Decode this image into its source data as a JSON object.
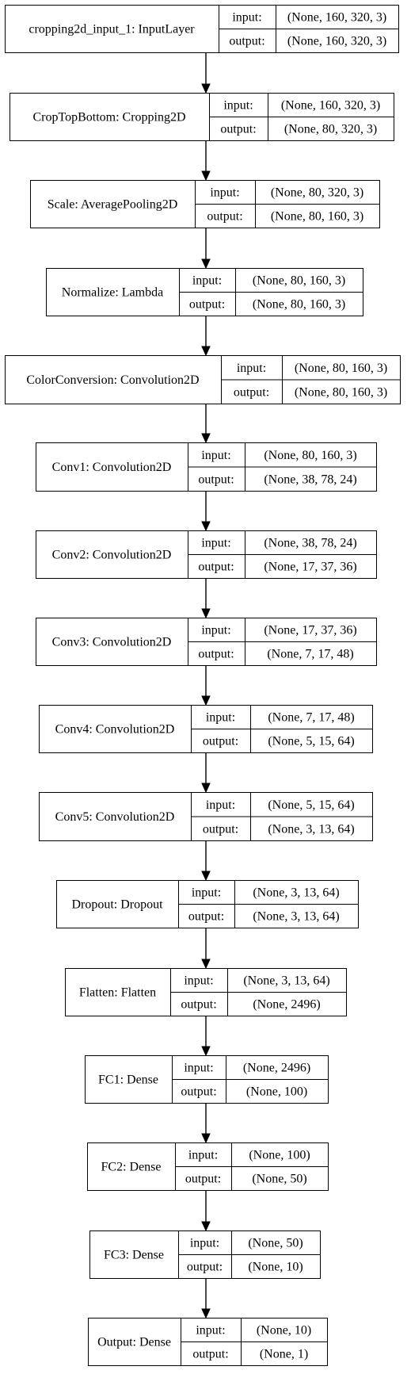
{
  "layers": [
    {
      "name": "cropping2d_input_1: InputLayer",
      "input": "(None, 160, 320, 3)",
      "output": "(None, 160, 320, 3)"
    },
    {
      "name": "CropTopBottom: Cropping2D",
      "input": "(None, 160, 320, 3)",
      "output": "(None, 80, 320, 3)"
    },
    {
      "name": "Scale: AveragePooling2D",
      "input": "(None, 80, 320, 3)",
      "output": "(None, 80, 160, 3)"
    },
    {
      "name": "Normalize: Lambda",
      "input": "(None, 80, 160, 3)",
      "output": "(None, 80, 160, 3)"
    },
    {
      "name": "ColorConversion: Convolution2D",
      "input": "(None, 80, 160, 3)",
      "output": "(None, 80, 160, 3)"
    },
    {
      "name": "Conv1: Convolution2D",
      "input": "(None, 80, 160, 3)",
      "output": "(None, 38, 78, 24)"
    },
    {
      "name": "Conv2: Convolution2D",
      "input": "(None, 38, 78, 24)",
      "output": "(None, 17, 37, 36)"
    },
    {
      "name": "Conv3: Convolution2D",
      "input": "(None, 17, 37, 36)",
      "output": "(None, 7, 17, 48)"
    },
    {
      "name": "Conv4: Convolution2D",
      "input": "(None, 7, 17, 48)",
      "output": "(None, 5, 15, 64)"
    },
    {
      "name": "Conv5: Convolution2D",
      "input": "(None, 5, 15, 64)",
      "output": "(None, 3, 13, 64)"
    },
    {
      "name": "Dropout: Dropout",
      "input": "(None, 3, 13, 64)",
      "output": "(None, 3, 13, 64)"
    },
    {
      "name": "Flatten: Flatten",
      "input": "(None, 3, 13, 64)",
      "output": "(None, 2496)"
    },
    {
      "name": "FC1: Dense",
      "input": "(None, 2496)",
      "output": "(None, 100)"
    },
    {
      "name": "FC2: Dense",
      "input": "(None, 100)",
      "output": "(None, 50)"
    },
    {
      "name": "FC3: Dense",
      "input": "(None, 50)",
      "output": "(None, 10)"
    },
    {
      "name": "Output: Dense",
      "input": "(None, 10)",
      "output": "(None, 1)"
    }
  ],
  "port_labels": {
    "input": "input:",
    "output": "output:"
  }
}
